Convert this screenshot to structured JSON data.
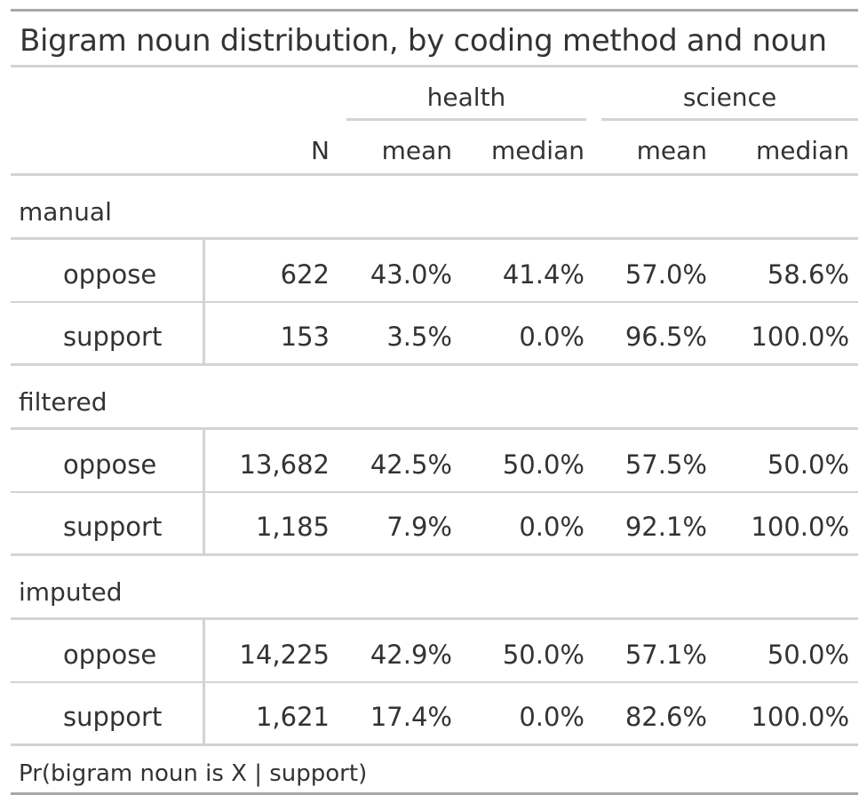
{
  "title": "Bigram noun distribution, by coding method and noun",
  "spanners": {
    "health": "health",
    "science": "science"
  },
  "columns": {
    "n": "N",
    "health_mean": "mean",
    "health_median": "median",
    "science_mean": "mean",
    "science_median": "median"
  },
  "groups": [
    {
      "label": "manual",
      "rows": [
        {
          "label": "oppose",
          "n": "622",
          "health_mean": "43.0%",
          "health_median": "41.4%",
          "science_mean": "57.0%",
          "science_median": "58.6%"
        },
        {
          "label": "support",
          "n": "153",
          "health_mean": "3.5%",
          "health_median": "0.0%",
          "science_mean": "96.5%",
          "science_median": "100.0%"
        }
      ]
    },
    {
      "label": "filtered",
      "rows": [
        {
          "label": "oppose",
          "n": "13,682",
          "health_mean": "42.5%",
          "health_median": "50.0%",
          "science_mean": "57.5%",
          "science_median": "50.0%"
        },
        {
          "label": "support",
          "n": "1,185",
          "health_mean": "7.9%",
          "health_median": "0.0%",
          "science_mean": "92.1%",
          "science_median": "100.0%"
        }
      ]
    },
    {
      "label": "imputed",
      "rows": [
        {
          "label": "oppose",
          "n": "14,225",
          "health_mean": "42.9%",
          "health_median": "50.0%",
          "science_mean": "57.1%",
          "science_median": "50.0%"
        },
        {
          "label": "support",
          "n": "1,621",
          "health_mean": "17.4%",
          "health_median": "0.0%",
          "science_mean": "82.6%",
          "science_median": "100.0%"
        }
      ]
    }
  ],
  "footnote": "Pr(bigram noun is X | support)",
  "colors": {
    "text": "#333333",
    "rule": "#d3d3d3",
    "heavy_rule": "#a8a8a8"
  }
}
